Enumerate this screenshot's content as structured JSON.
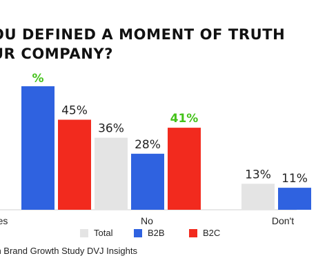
{
  "title_lines": [
    "OU DEFINED A MOMENT OF TRUTH",
    "UR COMPANY?"
  ],
  "source": "ean Brand Growth Study DVJ Insights",
  "colors": {
    "Total": "#e4e4e4",
    "B2B": "#2f62e0",
    "B2C": "#f22a1e",
    "highlight": "#44c21a",
    "label": "#222222"
  },
  "chart_data": {
    "type": "bar",
    "title": "OU DEFINED A MOMENT OF TRUTH UR COMPANY?",
    "categories": [
      "es",
      "No",
      "Don't"
    ],
    "series": [
      {
        "name": "Total",
        "values": [
          null,
          36,
          13
        ],
        "labels": [
          null,
          "36%",
          "13%"
        ]
      },
      {
        "name": "B2B",
        "values": [
          null,
          28,
          11
        ],
        "labels": [
          "%",
          "28%",
          "11%"
        ]
      },
      {
        "name": "B2C",
        "values": [
          45,
          41,
          null
        ],
        "labels": [
          "45%",
          "41%",
          null
        ]
      }
    ],
    "highlights": [
      {
        "series": "B2B",
        "category": "es"
      },
      {
        "series": "B2C",
        "category": "No"
      }
    ],
    "ylim": [
      0,
      60
    ],
    "grid": false,
    "legend_position": "bottom"
  }
}
